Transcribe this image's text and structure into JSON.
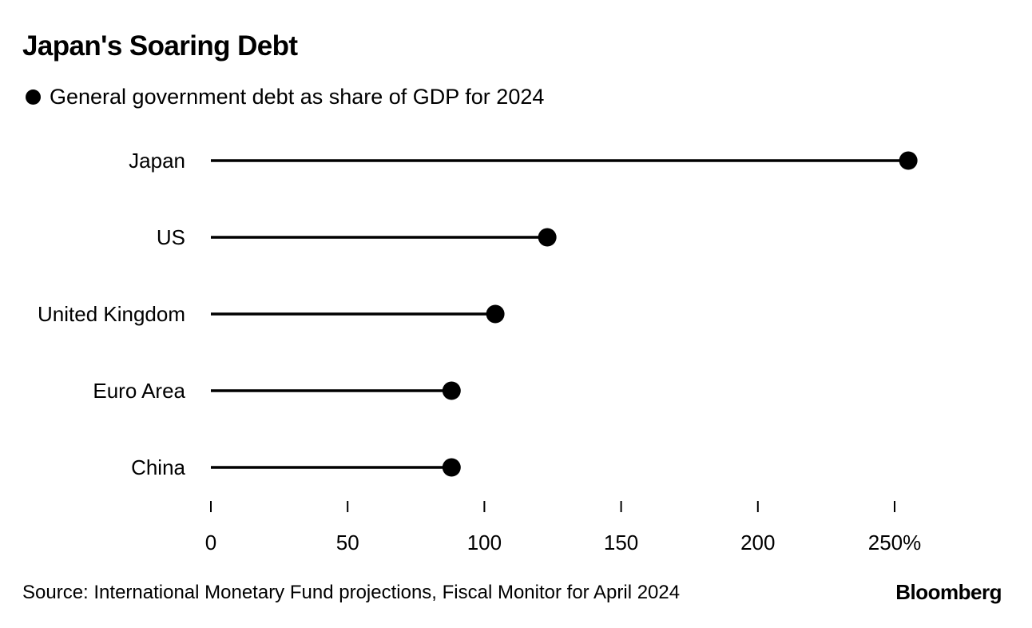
{
  "chart_data": {
    "type": "lollipop",
    "title": "Japan's Soaring Debt",
    "legend": [
      {
        "label": "General government debt as share of GDP for 2024",
        "color": "#000000"
      }
    ],
    "categories": [
      "Japan",
      "US",
      "United Kingdom",
      "Euro Area",
      "China"
    ],
    "series": [
      {
        "name": "General government debt as share of GDP for 2024",
        "values": [
          255,
          123,
          104,
          88,
          88
        ]
      }
    ],
    "xlim": [
      0,
      250
    ],
    "xticks": [
      0,
      50,
      100,
      150,
      200,
      250
    ],
    "xtick_labels": [
      "0",
      "50",
      "100",
      "150",
      "200",
      "250%"
    ],
    "xlabel": "",
    "ylabel": "",
    "grid": false,
    "legend_position": "top-left"
  },
  "footer": {
    "source": "Source: International Monetary Fund projections, Fiscal Monitor for April 2024",
    "brand": "Bloomberg"
  },
  "colors": {
    "ink": "#000000",
    "background": "#ffffff"
  }
}
